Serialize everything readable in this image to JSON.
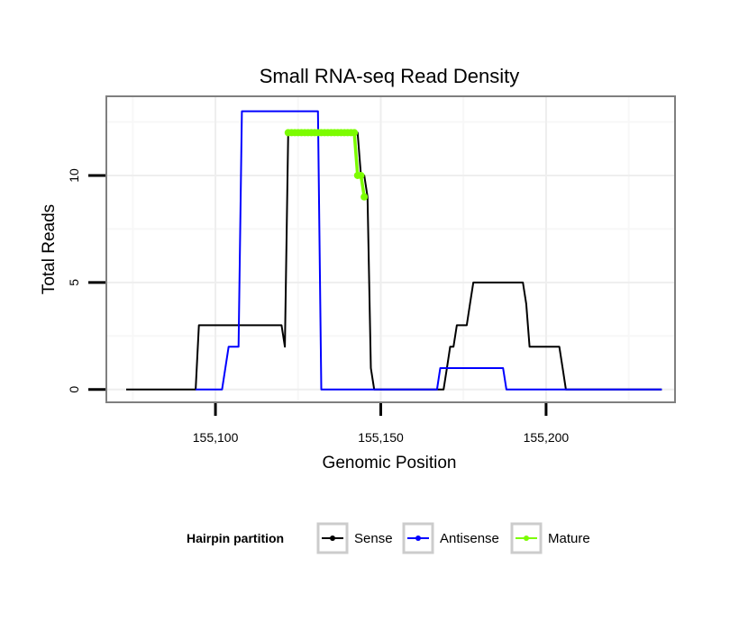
{
  "chart_data": {
    "type": "line",
    "title": "Small RNA-seq Read Density",
    "xlabel": "Genomic Position",
    "ylabel": "Total Reads",
    "xlim": [
      155067,
      155239
    ],
    "ylim": [
      -0.6,
      13.7
    ],
    "x_ticks": [
      155100,
      155150,
      155200
    ],
    "x_tick_labels": [
      "155,100",
      "155,150",
      "155,200"
    ],
    "y_ticks": [
      0,
      5,
      10
    ],
    "y_tick_labels": [
      "0",
      "5",
      "10"
    ],
    "grid": true,
    "legend": {
      "title": "Hairpin partition",
      "position": "bottom",
      "entries": [
        "Sense",
        "Antisense",
        "Mature"
      ]
    },
    "series": [
      {
        "name": "Sense",
        "color": "#000000",
        "x": [
          155073,
          155094,
          155095,
          155110,
          155120,
          155121,
          155122,
          155143,
          155144,
          155145,
          155146,
          155147,
          155148,
          155168,
          155169,
          155170,
          155171,
          155172,
          155173,
          155176,
          155177,
          155178,
          155179,
          155193,
          155194,
          155195,
          155203,
          155204,
          155205,
          155206,
          155235
        ],
        "values": [
          0,
          0,
          3,
          3,
          3,
          2,
          12,
          12,
          10,
          10,
          9,
          1,
          0,
          0,
          0,
          1,
          2,
          2,
          3,
          3,
          4,
          5,
          5,
          5,
          4,
          2,
          2,
          2,
          1,
          0,
          0
        ]
      },
      {
        "name": "Antisense",
        "color": "#0000ff",
        "x": [
          155094,
          155102,
          155104,
          155106,
          155107,
          155108,
          155130,
          155131,
          155132,
          155167,
          155168,
          155187,
          155188,
          155235
        ],
        "values": [
          0,
          0,
          2,
          2,
          2,
          13,
          13,
          13,
          0,
          0,
          1,
          1,
          0,
          0
        ]
      },
      {
        "name": "Mature",
        "color": "#7cfc00",
        "x": [
          155122,
          155123,
          155124,
          155125,
          155126,
          155127,
          155128,
          155129,
          155130,
          155131,
          155132,
          155133,
          155134,
          155135,
          155136,
          155137,
          155138,
          155139,
          155140,
          155141,
          155142,
          155143,
          155144,
          155145
        ],
        "values": [
          12,
          12,
          12,
          12,
          12,
          12,
          12,
          12,
          12,
          12,
          12,
          12,
          12,
          12,
          12,
          12,
          12,
          12,
          12,
          12,
          12,
          10,
          10,
          9
        ]
      }
    ]
  }
}
